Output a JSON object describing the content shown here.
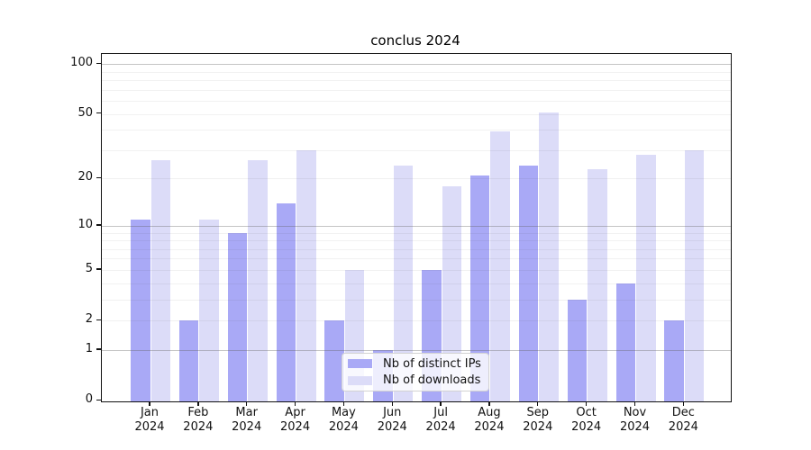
{
  "title": "conclus 2024",
  "chart_data": {
    "type": "bar",
    "title": "conclus 2024",
    "categories": [
      "Jan 2024",
      "Feb 2024",
      "Mar 2024",
      "Apr 2024",
      "May 2024",
      "Jun 2024",
      "Jul 2024",
      "Aug 2024",
      "Sep 2024",
      "Oct 2024",
      "Nov 2024",
      "Dec 2024"
    ],
    "series": [
      {
        "name": "Nb of distinct IPs",
        "color": "#a9a9f6",
        "values": [
          11,
          2,
          9,
          14,
          2,
          1,
          5,
          21,
          24,
          3,
          4,
          2
        ]
      },
      {
        "name": "Nb of downloads",
        "color": "#dcdcf8",
        "values": [
          26,
          11,
          26,
          30,
          5,
          24,
          18,
          39,
          51,
          23,
          28,
          30
        ]
      }
    ],
    "xlabel": "",
    "ylabel": "",
    "yscale": "log1p",
    "ylim": [
      0,
      115
    ],
    "ytick_labels": [
      "100",
      "50",
      "20",
      "10",
      "5",
      "2",
      "1",
      "0"
    ],
    "yticks": [
      100,
      50,
      20,
      10,
      5,
      2,
      1,
      0
    ],
    "major_gridlines": [
      1,
      10,
      100
    ],
    "minor_gridlines": [
      2,
      3,
      4,
      5,
      6,
      7,
      8,
      9,
      20,
      30,
      40,
      50,
      60,
      70,
      80,
      90
    ],
    "grid": true,
    "legend_position": "lower-center"
  }
}
